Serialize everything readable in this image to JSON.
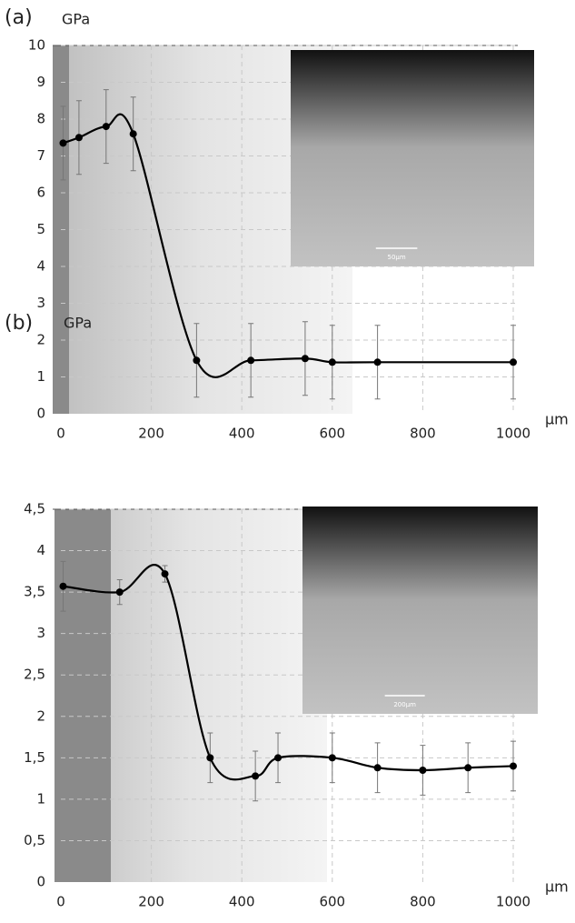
{
  "chart_data": [
    {
      "type": "line",
      "panel_label": "(a)",
      "y_label": "GPa",
      "x_label": "μm",
      "x": [
        5,
        40,
        100,
        160,
        300,
        420,
        540,
        600,
        700,
        1000
      ],
      "values": [
        7.35,
        7.5,
        7.8,
        7.6,
        1.45,
        1.45,
        1.5,
        1.4,
        1.4,
        1.4
      ],
      "errors": [
        1,
        1,
        1,
        1,
        1,
        1,
        1,
        1,
        1,
        1
      ],
      "xlim": [
        0,
        1000
      ],
      "xticks": [
        0,
        200,
        400,
        600,
        800,
        1000
      ],
      "ylim": [
        0,
        10
      ],
      "yticks": [
        0,
        1,
        2,
        3,
        4,
        5,
        6,
        7,
        8,
        9,
        10
      ],
      "color": "#000000",
      "grid": true,
      "inset_label": "50μm"
    },
    {
      "type": "line",
      "panel_label": "(b)",
      "y_label": "GPa",
      "x_label": "μm",
      "x": [
        5,
        130,
        230,
        330,
        430,
        480,
        600,
        700,
        800,
        900,
        1000
      ],
      "values": [
        3.57,
        3.5,
        3.72,
        1.5,
        1.28,
        1.5,
        1.5,
        1.38,
        1.35,
        1.38,
        1.4
      ],
      "errors": [
        0.3,
        0.15,
        0.1,
        0.3,
        0.3,
        0.3,
        0.3,
        0.3,
        0.3,
        0.3,
        0.3
      ],
      "xlim": [
        0,
        1000
      ],
      "xticks": [
        0,
        200,
        400,
        600,
        800,
        1000
      ],
      "ylim": [
        0,
        4.5
      ],
      "yticks": [
        0,
        {
          "value": 0.5,
          "label": "0,5"
        },
        1,
        {
          "value": 1.5,
          "label": "1,5"
        },
        2,
        {
          "value": 2.5,
          "label": "2,5"
        },
        3,
        {
          "value": 3.5,
          "label": "3,5"
        },
        4,
        {
          "value": 4.5,
          "label": "4,5"
        }
      ],
      "color": "#000000",
      "grid": true,
      "inset_label": "200μm"
    }
  ]
}
